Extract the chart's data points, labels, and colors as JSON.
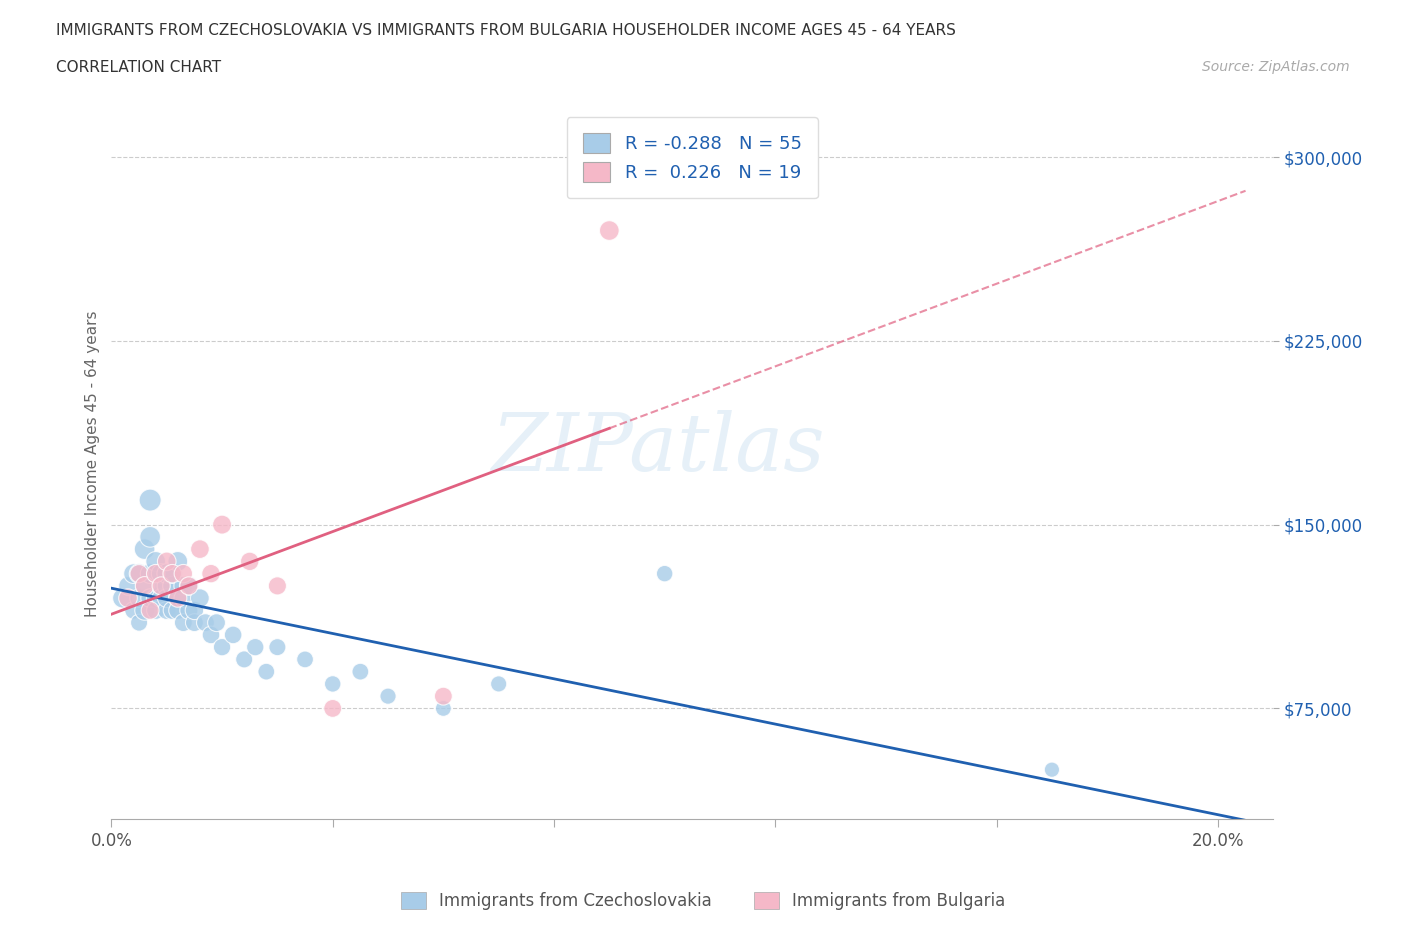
{
  "title_line1": "IMMIGRANTS FROM CZECHOSLOVAKIA VS IMMIGRANTS FROM BULGARIA HOUSEHOLDER INCOME AGES 45 - 64 YEARS",
  "title_line2": "CORRELATION CHART",
  "source_text": "Source: ZipAtlas.com",
  "ylabel": "Householder Income Ages 45 - 64 years",
  "watermark": "ZIPatlas",
  "xlim": [
    0.0,
    0.21
  ],
  "ylim": [
    30000,
    320000
  ],
  "yticks": [
    75000,
    150000,
    225000,
    300000
  ],
  "ytick_labels": [
    "$75,000",
    "$150,000",
    "$225,000",
    "$300,000"
  ],
  "xticks": [
    0.0,
    0.04,
    0.08,
    0.12,
    0.16,
    0.2
  ],
  "czech_R": -0.288,
  "czech_N": 55,
  "bulg_R": 0.226,
  "bulg_N": 19,
  "czech_color": "#a8cce8",
  "bulg_color": "#f5b8c8",
  "czech_line_color": "#2060b0",
  "bulg_line_color": "#e06080",
  "background_color": "#ffffff",
  "grid_color": "#cccccc",
  "legend_color": "#2060b0",
  "czech_scatter_x": [
    0.002,
    0.003,
    0.004,
    0.004,
    0.005,
    0.005,
    0.005,
    0.006,
    0.006,
    0.006,
    0.007,
    0.007,
    0.007,
    0.007,
    0.008,
    0.008,
    0.008,
    0.009,
    0.009,
    0.009,
    0.01,
    0.01,
    0.01,
    0.01,
    0.011,
    0.011,
    0.011,
    0.012,
    0.012,
    0.012,
    0.013,
    0.013,
    0.013,
    0.014,
    0.014,
    0.015,
    0.015,
    0.016,
    0.017,
    0.018,
    0.019,
    0.02,
    0.022,
    0.024,
    0.026,
    0.028,
    0.03,
    0.035,
    0.04,
    0.045,
    0.05,
    0.06,
    0.07,
    0.1,
    0.17
  ],
  "czech_scatter_y": [
    120000,
    125000,
    115000,
    130000,
    110000,
    120000,
    130000,
    125000,
    115000,
    140000,
    120000,
    130000,
    145000,
    160000,
    120000,
    135000,
    115000,
    125000,
    130000,
    120000,
    115000,
    125000,
    130000,
    120000,
    125000,
    115000,
    130000,
    120000,
    135000,
    115000,
    125000,
    110000,
    120000,
    115000,
    125000,
    110000,
    115000,
    120000,
    110000,
    105000,
    110000,
    100000,
    105000,
    95000,
    100000,
    90000,
    100000,
    95000,
    85000,
    90000,
    80000,
    75000,
    85000,
    130000,
    50000
  ],
  "czech_scatter_size": [
    200,
    180,
    160,
    200,
    150,
    180,
    200,
    170,
    200,
    220,
    180,
    200,
    220,
    250,
    180,
    200,
    170,
    190,
    200,
    180,
    170,
    190,
    200,
    180,
    190,
    170,
    200,
    180,
    200,
    170,
    185,
    165,
    180,
    170,
    185,
    165,
    175,
    180,
    165,
    160,
    165,
    155,
    160,
    150,
    155,
    145,
    150,
    145,
    140,
    145,
    135,
    130,
    135,
    140,
    120
  ],
  "bulg_scatter_x": [
    0.003,
    0.005,
    0.006,
    0.007,
    0.008,
    0.009,
    0.01,
    0.011,
    0.012,
    0.013,
    0.014,
    0.016,
    0.018,
    0.02,
    0.025,
    0.03,
    0.04,
    0.06,
    0.09
  ],
  "bulg_scatter_y": [
    120000,
    130000,
    125000,
    115000,
    130000,
    125000,
    135000,
    130000,
    120000,
    130000,
    125000,
    140000,
    130000,
    150000,
    135000,
    125000,
    75000,
    80000,
    270000
  ],
  "bulg_scatter_size": [
    180,
    170,
    180,
    165,
    175,
    170,
    180,
    175,
    170,
    175,
    170,
    180,
    175,
    185,
    175,
    170,
    165,
    165,
    200
  ]
}
